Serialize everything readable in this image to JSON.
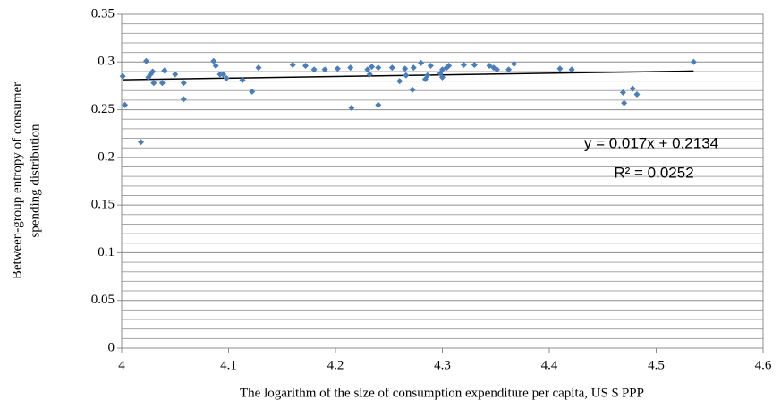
{
  "chart_data": {
    "type": "scatter",
    "xlabel": "The logarithm of the size of consumption expenditure per capita, US $ PPP",
    "ylabel": [
      "Between-group entropy of consumer",
      "spending distribution"
    ],
    "x": [
      4.001,
      4.003,
      4.018,
      4.023,
      4.025,
      4.027,
      4.029,
      4.03,
      4.038,
      4.04,
      4.05,
      4.058,
      4.058,
      4.086,
      4.088,
      4.092,
      4.095,
      4.098,
      4.113,
      4.122,
      4.128,
      4.16,
      4.172,
      4.18,
      4.19,
      4.202,
      4.214,
      4.215,
      4.23,
      4.232,
      4.234,
      4.24,
      4.24,
      4.253,
      4.26,
      4.265,
      4.266,
      4.272,
      4.273,
      4.28,
      4.284,
      4.286,
      4.289,
      4.298,
      4.3,
      4.3,
      4.304,
      4.306,
      4.32,
      4.33,
      4.344,
      4.348,
      4.351,
      4.362,
      4.367,
      4.41,
      4.421,
      4.469,
      4.47,
      4.478,
      4.482,
      4.535
    ],
    "values": [
      0.285,
      0.255,
      0.216,
      0.301,
      0.284,
      0.287,
      0.29,
      0.278,
      0.278,
      0.291,
      0.287,
      0.278,
      0.261,
      0.301,
      0.296,
      0.287,
      0.287,
      0.283,
      0.281,
      0.269,
      0.294,
      0.297,
      0.296,
      0.292,
      0.292,
      0.293,
      0.294,
      0.252,
      0.292,
      0.287,
      0.295,
      0.255,
      0.294,
      0.294,
      0.28,
      0.293,
      0.286,
      0.271,
      0.294,
      0.299,
      0.282,
      0.286,
      0.296,
      0.288,
      0.284,
      0.292,
      0.294,
      0.296,
      0.297,
      0.297,
      0.296,
      0.294,
      0.292,
      0.292,
      0.298,
      0.293,
      0.292,
      0.268,
      0.257,
      0.272,
      0.266,
      0.3
    ],
    "color": "#4a7ebb",
    "xlim": [
      4,
      4.6
    ],
    "xticks": [
      4,
      4.1,
      4.2,
      4.3,
      4.4,
      4.5,
      4.6
    ],
    "ylim": [
      0,
      0.35
    ],
    "yticks": [
      0,
      0.05,
      0.1,
      0.15,
      0.2,
      0.25,
      0.3,
      0.35
    ],
    "y_minor_ticks": [
      0.01,
      0.02,
      0.03,
      0.04,
      0.06,
      0.07,
      0.08,
      0.09,
      0.11,
      0.12,
      0.13,
      0.14,
      0.16,
      0.17,
      0.18,
      0.19,
      0.21,
      0.22,
      0.23,
      0.24,
      0.26,
      0.27,
      0.28,
      0.29,
      0.31,
      0.32,
      0.33,
      0.34
    ],
    "grid": true,
    "trendline": {
      "slope": 0.017,
      "intercept": 0.2134,
      "color": "#000000",
      "equation": "y = 0.017x + 0.2134",
      "r_squared": "R² = 0.0252"
    }
  }
}
